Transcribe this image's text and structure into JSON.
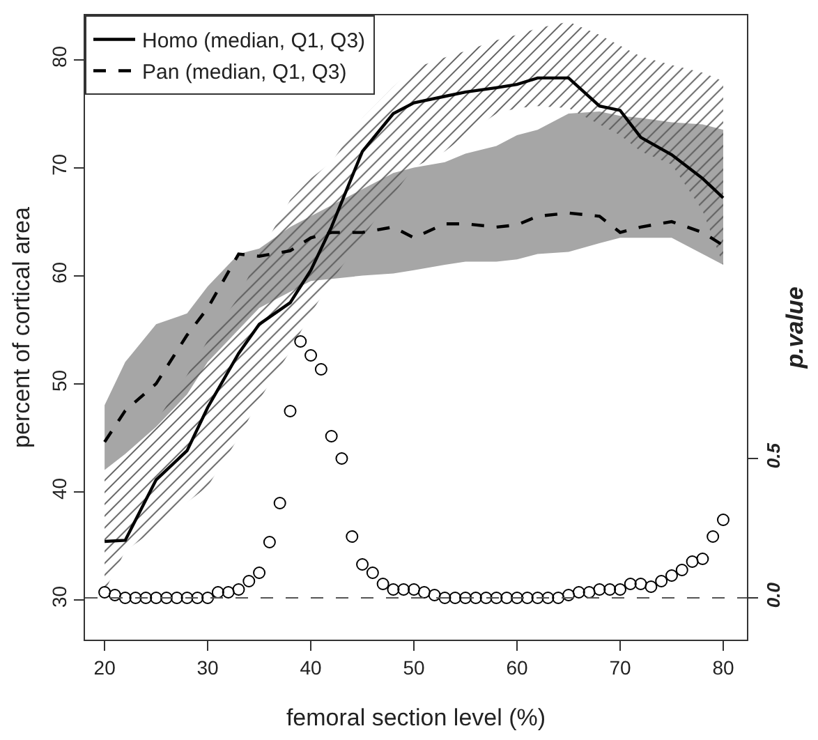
{
  "chart_data": {
    "type": "line",
    "xlabel": "femoral section level (%)",
    "ylabel": "percent of cortical area",
    "y2label": "p.value",
    "x": [
      20,
      22,
      25,
      28,
      30,
      33,
      35,
      38,
      40,
      42,
      45,
      48,
      50,
      53,
      55,
      58,
      60,
      62,
      65,
      68,
      70,
      72,
      75,
      78,
      80
    ],
    "series": [
      {
        "name": "Homo (median, Q1, Q3)",
        "color": "#000000",
        "line_style": "solid",
        "values": [
          35.4,
          35.5,
          41.1,
          43.8,
          47.8,
          52.8,
          55.5,
          57.5,
          60.5,
          64.5,
          71.5,
          75,
          76,
          76.6,
          77,
          77.4,
          77.7,
          78.3,
          78.3,
          75.7,
          75.3,
          72.8,
          71.2,
          69,
          67.2
        ],
        "lower": [
          30.8,
          34.5,
          36.6,
          39,
          40.5,
          45,
          48.5,
          53,
          56.5,
          59.5,
          63.5,
          67.5,
          70,
          71.5,
          73,
          75,
          75.5,
          75.7,
          75.5,
          74,
          73,
          71.5,
          70.3,
          66,
          61
        ],
        "upper": [
          41.3,
          43.3,
          46.5,
          50.8,
          54,
          58,
          62,
          67,
          69,
          70.5,
          74.6,
          77.5,
          79.2,
          80.2,
          80.8,
          81.8,
          82.3,
          82.9,
          83.5,
          82.3,
          81.3,
          80.3,
          79.5,
          78.8,
          78
        ]
      },
      {
        "name": "Pan (median, Q1, Q3)",
        "color": "#000000",
        "line_style": "dashed",
        "values": [
          44.6,
          47.5,
          50,
          54.5,
          57,
          62,
          61.8,
          62.3,
          63.5,
          64,
          64,
          64.5,
          63.5,
          64.8,
          64.8,
          64.5,
          64.7,
          65.5,
          65.8,
          65.5,
          64,
          64.5,
          65,
          64,
          62.8
        ],
        "lower": [
          42,
          43.5,
          46,
          49,
          52,
          55,
          57,
          58.5,
          59.5,
          59.7,
          60,
          60.2,
          60.5,
          61,
          61.3,
          61.3,
          61.5,
          62,
          62.2,
          63,
          63.5,
          63.5,
          63.5,
          62,
          61
        ],
        "upper": [
          48,
          52,
          55.5,
          56.5,
          59,
          62,
          62.5,
          64.5,
          65.5,
          66.5,
          68,
          69.5,
          70,
          70.5,
          71.3,
          72,
          73,
          73.5,
          75,
          75.2,
          74.8,
          74.6,
          74.2,
          74,
          73.5
        ]
      },
      {
        "type": "scatter",
        "axis": "y2",
        "color": "#000000",
        "marker": "circle",
        "x": [
          20,
          21,
          22,
          23,
          24,
          25,
          26,
          27,
          28,
          29,
          30,
          31,
          32,
          33,
          34,
          35,
          36,
          37,
          38,
          39,
          40,
          41,
          42,
          43,
          44,
          45,
          46,
          47,
          48,
          49,
          50,
          51,
          52,
          53,
          54,
          55,
          56,
          57,
          58,
          59,
          60,
          61,
          62,
          63,
          64,
          65,
          66,
          67,
          68,
          69,
          70,
          71,
          72,
          73,
          74,
          75,
          76,
          77,
          78,
          79,
          80
        ],
        "values": [
          0.02,
          0.01,
          0,
          0,
          0,
          0,
          0,
          0,
          0,
          0,
          0,
          0.02,
          0.02,
          0.03,
          0.06,
          0.09,
          0.2,
          0.34,
          0.67,
          0.92,
          0.87,
          0.82,
          0.58,
          0.5,
          0.22,
          0.12,
          0.09,
          0.05,
          0.03,
          0.03,
          0.03,
          0.02,
          0.01,
          0,
          0,
          0,
          0,
          0,
          0,
          0,
          0,
          0,
          0,
          0,
          0,
          0.01,
          0.02,
          0.02,
          0.03,
          0.03,
          0.03,
          0.05,
          0.05,
          0.04,
          0.06,
          0.08,
          0.1,
          0.13,
          0.14,
          0.22,
          0.28
        ]
      }
    ],
    "xlim": [
      18.1,
      82.3
    ],
    "xticks": [
      20,
      30,
      40,
      50,
      60,
      70,
      80
    ],
    "ylim": [
      26.3,
      84.1
    ],
    "yticks": [
      30,
      40,
      50,
      60,
      70,
      80
    ],
    "y2lim": [
      -0.15,
      2.09
    ],
    "y2ticks": [
      {
        "value": 0,
        "label": "0.0"
      },
      {
        "value": 0.5,
        "label": "0.5"
      }
    ],
    "ref_lines": [
      {
        "axis": "y2",
        "value": 0,
        "color": "#555555",
        "line_style": "dashed"
      }
    ],
    "legend": "top left"
  }
}
